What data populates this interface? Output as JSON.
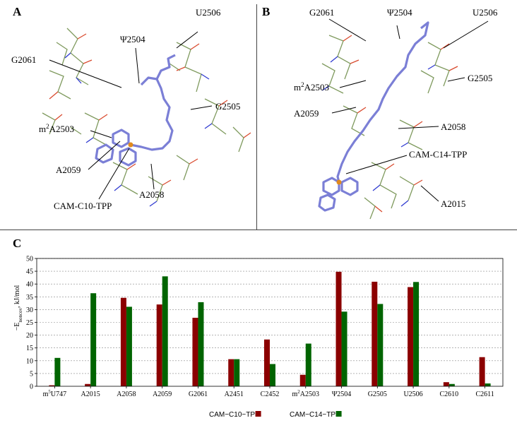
{
  "panels": {
    "a": {
      "letter": "A",
      "labels": {
        "g2061": "G2061",
        "psi2504": "Ψ2504",
        "u2506": "U2506",
        "g2505": "G2505",
        "m2a2503": "m2A2503",
        "a2059": "A2059",
        "a2058": "A2058",
        "ligand": "CAM-C10-TPP"
      }
    },
    "b": {
      "letter": "B",
      "labels": {
        "g2061": "G2061",
        "psi2504": "Ψ2504",
        "u2506": "U2506",
        "g2505": "G2505",
        "m2a2503": "m2A2503",
        "a2059": "A2059",
        "a2058": "A2058",
        "ligand": "CAM-C14-TPP",
        "a2015": "A2015"
      }
    },
    "c": {
      "letter": "C"
    }
  },
  "colors": {
    "series1": "#8b0000",
    "series2": "#006400",
    "ligand": "#7b7fd6",
    "rna": "#7f9a5e",
    "oxygen": "#d94a2e",
    "nitrogen": "#2f3ad1",
    "phosphorus": "#e08a1e"
  },
  "chart_data": {
    "type": "bar",
    "ylabel": "−Enoncov, kJ/mol",
    "ylim": [
      0,
      50
    ],
    "yticks": [
      0,
      5,
      10,
      15,
      20,
      25,
      30,
      35,
      40,
      45,
      50
    ],
    "grid": true,
    "legend_position": "bottom-center",
    "categories": [
      "m5U747",
      "A2015",
      "A2058",
      "A2059",
      "G2061",
      "A2451",
      "C2452",
      "m2A2503",
      "Ψ2504",
      "G2505",
      "U2506",
      "C2610",
      "C2611"
    ],
    "series": [
      {
        "name": "CAM−C10−TPP",
        "values": [
          0.4,
          0.9,
          34.6,
          32.0,
          26.8,
          10.6,
          18.3,
          4.5,
          44.8,
          40.9,
          38.8,
          1.6,
          11.4
        ]
      },
      {
        "name": "CAM−C14−TPP",
        "values": [
          11.1,
          36.4,
          31.1,
          43.0,
          32.9,
          10.6,
          8.7,
          16.7,
          29.2,
          32.2,
          40.8,
          0.9,
          1.1
        ]
      }
    ]
  }
}
